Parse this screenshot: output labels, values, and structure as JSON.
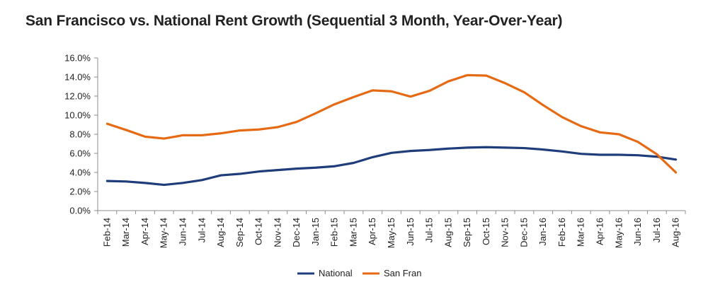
{
  "chart_data": {
    "type": "line",
    "title": "San Francisco vs. National Rent Growth (Sequential 3 Month, Year-Over-Year)",
    "categories": [
      "Feb-14",
      "Mar-14",
      "Apr-14",
      "May-14",
      "Jun-14",
      "Jul-14",
      "Aug-14",
      "Sep-14",
      "Oct-14",
      "Nov-14",
      "Dec-14",
      "Jan-15",
      "Feb-15",
      "Mar-15",
      "Apr-15",
      "May-15",
      "Jun-15",
      "Jul-15",
      "Aug-15",
      "Sep-15",
      "Oct-15",
      "Nov-15",
      "Dec-15",
      "Jan-16",
      "Feb-16",
      "Mar-16",
      "Apr-16",
      "May-16",
      "Jun-16",
      "Jul-16",
      "Aug-16"
    ],
    "y_ticks": [
      "0.0%",
      "2.0%",
      "4.0%",
      "6.0%",
      "8.0%",
      "10.0%",
      "12.0%",
      "14.0%",
      "16.0%"
    ],
    "ylim": [
      0,
      16
    ],
    "grid": false,
    "legend_position": "bottom",
    "series": [
      {
        "name": "National",
        "color": "#1f3d7a",
        "values": [
          3.1,
          3.05,
          2.9,
          2.7,
          2.9,
          3.2,
          3.7,
          3.85,
          4.1,
          4.25,
          4.4,
          4.5,
          4.65,
          5.0,
          5.6,
          6.05,
          6.25,
          6.35,
          6.5,
          6.6,
          6.65,
          6.6,
          6.55,
          6.4,
          6.2,
          5.95,
          5.85,
          5.85,
          5.8,
          5.65,
          5.35
        ]
      },
      {
        "name": "San Fran",
        "color": "#e66a14",
        "values": [
          9.1,
          8.45,
          7.75,
          7.55,
          7.9,
          7.9,
          8.1,
          8.4,
          8.5,
          8.75,
          9.3,
          10.2,
          11.15,
          11.9,
          12.6,
          12.5,
          11.95,
          12.55,
          13.55,
          14.2,
          14.15,
          13.35,
          12.4,
          11.05,
          9.8,
          8.85,
          8.2,
          8.0,
          7.2,
          5.9,
          4.0
        ]
      }
    ]
  }
}
